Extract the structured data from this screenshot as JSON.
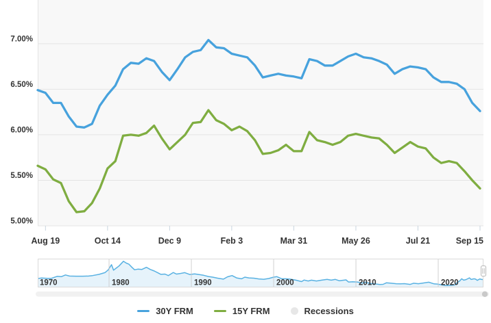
{
  "legend": {
    "items": [
      {
        "label": "30Y FRM",
        "color": "#47a2dd",
        "marker": "line"
      },
      {
        "label": "15Y FRM",
        "color": "#7fad41",
        "marker": "line"
      },
      {
        "label": "Recessions",
        "color": "#e7e7e7",
        "marker": "circle"
      }
    ]
  },
  "chart_data": [
    {
      "type": "line",
      "title": "",
      "xlabel": "",
      "ylabel": "",
      "grid": "horizontal",
      "y_ticks": [
        7.0,
        6.5,
        6.0,
        5.5,
        5.0
      ],
      "y_tick_labels": [
        "7.00%",
        "6.50%",
        "6.00%",
        "5.50%",
        "5.00%"
      ],
      "ylim": [
        5.0,
        7.48
      ],
      "x_tick_labels": [
        "Aug 19",
        "Oct 14",
        "Dec 9",
        "Feb 3",
        "Mar 31",
        "May 26",
        "Jul 21",
        "Sep 15"
      ],
      "x_tick_indices": [
        1,
        9,
        17,
        25,
        33,
        41,
        49,
        57
      ],
      "points_per_week": 1,
      "series": [
        {
          "name": "30Y FRM",
          "color": "#47a2dd",
          "values": [
            6.49,
            6.46,
            6.35,
            6.35,
            6.2,
            6.09,
            6.08,
            6.12,
            6.32,
            6.44,
            6.54,
            6.72,
            6.79,
            6.78,
            6.84,
            6.81,
            6.69,
            6.6,
            6.72,
            6.85,
            6.91,
            6.93,
            7.04,
            6.96,
            6.95,
            6.89,
            6.87,
            6.85,
            6.76,
            6.63,
            6.65,
            6.67,
            6.65,
            6.64,
            6.62,
            6.83,
            6.81,
            6.76,
            6.76,
            6.81,
            6.86,
            6.89,
            6.85,
            6.84,
            6.81,
            6.77,
            6.67,
            6.72,
            6.75,
            6.74,
            6.72,
            6.63,
            6.58,
            6.58,
            6.56,
            6.5,
            6.35,
            6.26
          ]
        },
        {
          "name": "15Y FRM",
          "color": "#7fad41",
          "values": [
            5.66,
            5.62,
            5.51,
            5.47,
            5.27,
            5.15,
            5.16,
            5.25,
            5.41,
            5.63,
            5.71,
            5.99,
            6.0,
            5.99,
            6.02,
            6.1,
            5.96,
            5.84,
            5.92,
            6.0,
            6.13,
            6.14,
            6.27,
            6.16,
            6.12,
            6.05,
            6.09,
            6.04,
            5.94,
            5.79,
            5.8,
            5.83,
            5.89,
            5.82,
            5.82,
            6.03,
            5.94,
            5.92,
            5.89,
            5.92,
            5.99,
            6.01,
            5.99,
            5.97,
            5.96,
            5.89,
            5.8,
            5.86,
            5.92,
            5.87,
            5.85,
            5.75,
            5.69,
            5.71,
            5.69,
            5.6,
            5.5,
            5.41
          ]
        }
      ]
    },
    {
      "type": "area",
      "role": "navigator",
      "x_tick_labels": [
        "1970",
        "1980",
        "1990",
        "2000",
        "2010",
        "2020"
      ],
      "x_tick_years": [
        1970,
        1980,
        1990,
        2000,
        2010,
        2020
      ],
      "xlim": [
        1971.33,
        2025.75
      ],
      "ylim": [
        1.5,
        20.2
      ],
      "series": [
        {
          "name": "30Y FRM history",
          "color": "#58b1e2",
          "fill": "#e6f3fb",
          "points": [
            [
              1971.33,
              7.3
            ],
            [
              1971.8,
              7.6
            ],
            [
              1972.5,
              7.4
            ],
            [
              1973.0,
              7.4
            ],
            [
              1973.7,
              8.7
            ],
            [
              1974.2,
              8.5
            ],
            [
              1974.7,
              9.6
            ],
            [
              1975.2,
              8.9
            ],
            [
              1976.0,
              8.8
            ],
            [
              1976.8,
              8.8
            ],
            [
              1977.5,
              8.9
            ],
            [
              1978.0,
              9.2
            ],
            [
              1978.8,
              10.0
            ],
            [
              1979.5,
              11.1
            ],
            [
              1979.9,
              12.9
            ],
            [
              1980.3,
              16.3
            ],
            [
              1980.55,
              12.7
            ],
            [
              1980.9,
              14.2
            ],
            [
              1981.2,
              15.4
            ],
            [
              1981.75,
              18.5
            ],
            [
              1982.1,
              17.3
            ],
            [
              1982.4,
              16.7
            ],
            [
              1982.8,
              14.5
            ],
            [
              1983.1,
              13.0
            ],
            [
              1983.5,
              13.4
            ],
            [
              1984.0,
              13.2
            ],
            [
              1984.55,
              14.6
            ],
            [
              1985.0,
              13.2
            ],
            [
              1985.5,
              12.2
            ],
            [
              1986.0,
              10.8
            ],
            [
              1986.3,
              10.0
            ],
            [
              1986.8,
              10.2
            ],
            [
              1987.2,
              9.2
            ],
            [
              1987.8,
              11.2
            ],
            [
              1988.2,
              10.2
            ],
            [
              1988.6,
              10.5
            ],
            [
              1989.2,
              11.1
            ],
            [
              1989.8,
              9.9
            ],
            [
              1990.4,
              10.3
            ],
            [
              1990.9,
              9.9
            ],
            [
              1991.5,
              9.4
            ],
            [
              1992.1,
              8.6
            ],
            [
              1992.6,
              8.2
            ],
            [
              1993.2,
              7.5
            ],
            [
              1993.9,
              6.9
            ],
            [
              1994.4,
              8.4
            ],
            [
              1994.95,
              9.2
            ],
            [
              1995.5,
              7.7
            ],
            [
              1996.1,
              7.1
            ],
            [
              1996.5,
              8.2
            ],
            [
              1997.0,
              7.7
            ],
            [
              1997.6,
              7.5
            ],
            [
              1998.2,
              7.0
            ],
            [
              1998.8,
              6.8
            ],
            [
              1999.4,
              7.3
            ],
            [
              2000.0,
              8.2
            ],
            [
              2000.4,
              8.5
            ],
            [
              2001.0,
              7.1
            ],
            [
              2001.5,
              7.1
            ],
            [
              2002.0,
              6.9
            ],
            [
              2002.7,
              6.2
            ],
            [
              2003.4,
              5.3
            ],
            [
              2003.7,
              6.3
            ],
            [
              2004.2,
              5.7
            ],
            [
              2004.6,
              6.2
            ],
            [
              2005.2,
              5.7
            ],
            [
              2005.9,
              6.3
            ],
            [
              2006.5,
              6.7
            ],
            [
              2007.0,
              6.2
            ],
            [
              2007.5,
              6.7
            ],
            [
              2008.0,
              5.8
            ],
            [
              2008.3,
              6.1
            ],
            [
              2008.8,
              6.4
            ],
            [
              2009.1,
              5.0
            ],
            [
              2009.6,
              5.2
            ],
            [
              2010.2,
              5.0
            ],
            [
              2010.8,
              4.3
            ],
            [
              2011.1,
              4.9
            ],
            [
              2011.8,
              4.0
            ],
            [
              2012.3,
              3.8
            ],
            [
              2012.9,
              3.35
            ],
            [
              2013.3,
              3.5
            ],
            [
              2013.7,
              4.5
            ],
            [
              2014.2,
              4.3
            ],
            [
              2014.9,
              3.9
            ],
            [
              2015.4,
              3.85
            ],
            [
              2015.9,
              3.95
            ],
            [
              2016.6,
              3.45
            ],
            [
              2017.0,
              4.2
            ],
            [
              2017.6,
              3.9
            ],
            [
              2018.3,
              4.45
            ],
            [
              2018.85,
              4.9
            ],
            [
              2019.5,
              3.8
            ],
            [
              2019.9,
              3.7
            ],
            [
              2020.3,
              3.3
            ],
            [
              2020.9,
              2.75
            ],
            [
              2021.1,
              2.7
            ],
            [
              2021.6,
              2.9
            ],
            [
              2022.0,
              3.1
            ],
            [
              2022.4,
              5.1
            ],
            [
              2022.6,
              5.6
            ],
            [
              2022.85,
              7.1
            ],
            [
              2023.1,
              6.2
            ],
            [
              2023.4,
              6.6
            ],
            [
              2023.8,
              7.75
            ],
            [
              2024.0,
              6.65
            ],
            [
              2024.35,
              7.1
            ],
            [
              2024.55,
              6.9
            ],
            [
              2024.75,
              6.1
            ],
            [
              2025.05,
              7.0
            ],
            [
              2025.3,
              6.65
            ],
            [
              2025.55,
              6.6
            ],
            [
              2025.72,
              6.3
            ]
          ]
        }
      ]
    }
  ]
}
